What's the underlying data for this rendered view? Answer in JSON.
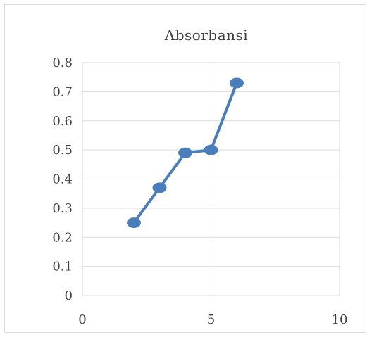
{
  "chart_data": {
    "type": "line",
    "title": "Absorbansi",
    "xlabel": "",
    "ylabel": "",
    "xlim": [
      0,
      10
    ],
    "ylim": [
      0,
      0.8
    ],
    "x_ticks": [
      0,
      5,
      10
    ],
    "x_tick_labels": [
      "0",
      "5",
      "10"
    ],
    "y_ticks": [
      0,
      0.1,
      0.2,
      0.3,
      0.4,
      0.5,
      0.6,
      0.7,
      0.8
    ],
    "y_tick_labels": [
      "0",
      "0.1",
      "0.2",
      "0.3",
      "0.4",
      "0.5",
      "0.6",
      "0.7",
      "0.8"
    ],
    "grid": {
      "horizontal": true,
      "vertical": true
    },
    "legend": "none",
    "series": [
      {
        "color": "#4a7ebb",
        "x": [
          2,
          3,
          4,
          5,
          6
        ],
        "y": [
          0.25,
          0.37,
          0.49,
          0.5,
          0.73
        ]
      }
    ],
    "colors": {
      "series": "#4a7ebb",
      "grid": "#d9d9d9",
      "axis_text": "#404040",
      "frame": "#d9d9d9"
    }
  }
}
